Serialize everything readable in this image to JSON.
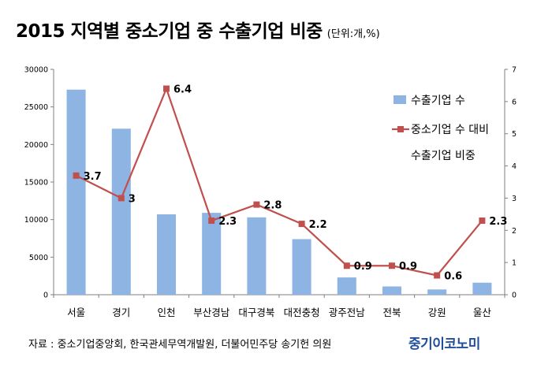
{
  "title": "2015 지역별 중소기업 중 수출기업 비중",
  "unit": "(단위:개,%)",
  "source": "자료 : 중소기업중앙회, 한국관세무역개발원, 더불어민주당 송기헌 의원",
  "logo": "중기이코노미",
  "colors": {
    "bar": "#8eb4e3",
    "line": "#c0504d",
    "axis": "#7f7f7f",
    "grid": "#d9d9d9"
  },
  "chart_data": {
    "type": "bar",
    "categories": [
      "서울",
      "경기",
      "인천",
      "부산경남",
      "대구경북",
      "대전충청",
      "광주전남",
      "전북",
      "강원",
      "울산"
    ],
    "ylim": [
      0,
      30000
    ],
    "yticks": [
      0,
      5000,
      10000,
      15000,
      20000,
      25000,
      30000
    ],
    "y2lim": [
      0,
      7
    ],
    "y2ticks": [
      0,
      1,
      2,
      3,
      4,
      5,
      6,
      7
    ],
    "legend_position": "right",
    "grid": false,
    "series": [
      {
        "name": "수출기업 수",
        "type": "bar",
        "axis": "left",
        "values": [
          27300,
          22100,
          10700,
          10900,
          10300,
          7400,
          2300,
          1100,
          700,
          1600
        ]
      },
      {
        "name": "중소기업 수 대비 수출기업 비중",
        "legend_line1": "중소기업 수 대비",
        "legend_line2": "수출기업 비중",
        "type": "line",
        "axis": "right",
        "values": [
          3.7,
          3,
          6.4,
          2.3,
          2.8,
          2.2,
          0.9,
          0.9,
          0.6,
          2.3
        ],
        "labels": [
          "3.7",
          "3",
          "6.4",
          "2.3",
          "2.8",
          "2.2",
          "0.9",
          "0.9",
          "0.6",
          "2.3"
        ]
      }
    ]
  }
}
